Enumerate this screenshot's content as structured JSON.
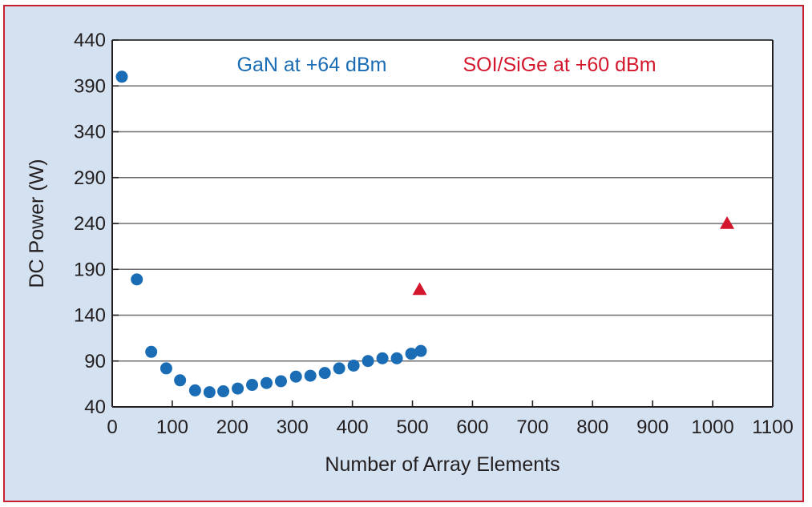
{
  "chart_data": {
    "type": "scatter",
    "xlabel": "Number of Array Elements",
    "ylabel": "DC Power (W)",
    "xlim": [
      0,
      1100
    ],
    "ylim": [
      40,
      440
    ],
    "xticks": [
      0,
      100,
      200,
      300,
      400,
      500,
      600,
      700,
      800,
      900,
      1000,
      1100
    ],
    "yticks": [
      40,
      90,
      140,
      190,
      240,
      290,
      340,
      390,
      440
    ],
    "grid": "horizontal",
    "series": [
      {
        "name": "GaN at +64 dBm",
        "color": "#1a6cb4",
        "marker": "circle",
        "points": [
          {
            "x": 16,
            "y": 400
          },
          {
            "x": 41,
            "y": 179
          },
          {
            "x": 65,
            "y": 100
          },
          {
            "x": 90,
            "y": 82
          },
          {
            "x": 113,
            "y": 69
          },
          {
            "x": 138,
            "y": 58
          },
          {
            "x": 162,
            "y": 56
          },
          {
            "x": 185,
            "y": 57
          },
          {
            "x": 209,
            "y": 60
          },
          {
            "x": 233,
            "y": 64
          },
          {
            "x": 257,
            "y": 66
          },
          {
            "x": 281,
            "y": 68
          },
          {
            "x": 306,
            "y": 73
          },
          {
            "x": 330,
            "y": 74
          },
          {
            "x": 354,
            "y": 77
          },
          {
            "x": 378,
            "y": 82
          },
          {
            "x": 402,
            "y": 85
          },
          {
            "x": 426,
            "y": 90
          },
          {
            "x": 450,
            "y": 93
          },
          {
            "x": 474,
            "y": 93
          },
          {
            "x": 498,
            "y": 98
          },
          {
            "x": 514,
            "y": 101
          }
        ]
      },
      {
        "name": "SOI/SiGe at +60 dBm",
        "color": "#d4162c",
        "marker": "triangle",
        "points": [
          {
            "x": 512,
            "y": 168
          },
          {
            "x": 1024,
            "y": 240
          }
        ]
      }
    ]
  }
}
